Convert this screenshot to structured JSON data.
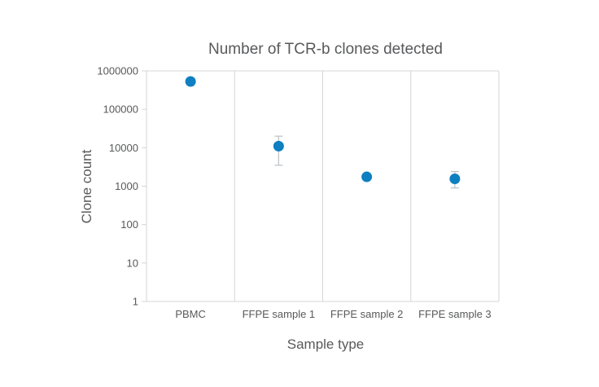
{
  "page": {
    "background": "#ffffff"
  },
  "chart_data": {
    "type": "scatter",
    "title": "Number of TCR-b clones detected",
    "xlabel": "Sample type",
    "ylabel": "Clone count",
    "yscale": "log",
    "ylim": [
      1,
      1000000
    ],
    "yticks": [
      1000000,
      100000,
      10000,
      1000,
      100,
      10,
      1
    ],
    "categories": [
      "PBMC",
      "FFPE sample 1",
      "FFPE sample 2",
      "FFPE sample 3"
    ],
    "series": [
      {
        "name": "Clone count",
        "values": [
          530000,
          11000,
          1750,
          1550
        ],
        "error_upper": [
          null,
          20000,
          null,
          2400
        ],
        "error_lower": [
          null,
          3500,
          null,
          900
        ]
      }
    ],
    "legend": "none",
    "grid": "vertical-category-separators, top and bottom border, left axis with decade ticks",
    "marker_shape": "circle",
    "colors": {
      "marker": "#0e7fc1",
      "error_bar": "#c0c4c8",
      "grid_line": "#d6d6d6",
      "text": "#58595b",
      "background": "#ffffff"
    }
  }
}
